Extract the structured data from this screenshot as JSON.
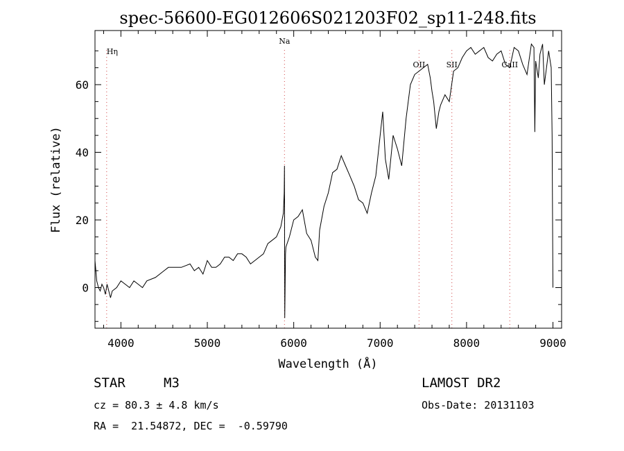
{
  "chart_data": {
    "type": "line",
    "title": "spec-56600-EG012606S021203F02_sp11-248.fits",
    "xlabel": "Wavelength (Å)",
    "ylabel": "Flux (relative)",
    "xlim": [
      3700,
      9100
    ],
    "ylim": [
      -12,
      76
    ],
    "x_ticks": [
      4000,
      5000,
      6000,
      7000,
      8000,
      9000
    ],
    "x_tick_labels": [
      "4000",
      "5000",
      "6000",
      "7000",
      "8000",
      "9000"
    ],
    "y_ticks": [
      0,
      20,
      40,
      60
    ],
    "y_tick_labels": [
      "0",
      "20",
      "40",
      "60"
    ],
    "grid": false,
    "lines": [
      {
        "label": "Hη",
        "x": 3835
      },
      {
        "label": "Na",
        "x": 5893
      },
      {
        "label": "OII",
        "x": 7450
      },
      {
        "label": "SII",
        "x": 7830
      },
      {
        "label": "CaII",
        "x": 8500
      }
    ],
    "series": [
      {
        "x": [
          3700,
          3720,
          3740,
          3760,
          3780,
          3800,
          3820,
          3840,
          3860,
          3880,
          3900,
          3950,
          4000,
          4050,
          4100,
          4150,
          4200,
          4250,
          4300,
          4400,
          4500,
          4550,
          4600,
          4700,
          4800,
          4850,
          4900,
          4950,
          5000,
          5050,
          5100,
          5150,
          5200,
          5250,
          5300,
          5350,
          5400,
          5450,
          5500,
          5550,
          5600,
          5650,
          5700,
          5750,
          5800,
          5850,
          5880,
          5890,
          5893,
          5896,
          5900,
          5905,
          5910,
          5950,
          6000,
          6050,
          6100,
          6150,
          6200,
          6250,
          6280,
          6300,
          6350,
          6400,
          6450,
          6500,
          6550,
          6600,
          6650,
          6700,
          6750,
          6800,
          6850,
          6900,
          6950,
          7000,
          7030,
          7060,
          7100,
          7150,
          7200,
          7250,
          7300,
          7350,
          7400,
          7450,
          7500,
          7550,
          7580,
          7600,
          7620,
          7650,
          7680,
          7700,
          7750,
          7800,
          7850,
          7900,
          7950,
          8000,
          8050,
          8100,
          8150,
          8200,
          8250,
          8300,
          8350,
          8400,
          8450,
          8500,
          8550,
          8600,
          8650,
          8700,
          8750,
          8780,
          8790,
          8800,
          8830,
          8850,
          8880,
          8900,
          8950,
          8980,
          8990,
          9000
        ],
        "y": [
          8,
          2,
          0,
          -1,
          1,
          0,
          -2,
          1,
          -1,
          -3,
          -1,
          0,
          2,
          1,
          0,
          2,
          1,
          0,
          2,
          3,
          5,
          6,
          6,
          6,
          7,
          5,
          6,
          4,
          8,
          6,
          6,
          7,
          9,
          9,
          8,
          10,
          10,
          9,
          7,
          8,
          9,
          10,
          13,
          14,
          15,
          18,
          22,
          28,
          36,
          -9,
          0,
          10,
          12,
          15,
          20,
          21,
          23,
          16,
          14,
          9,
          8,
          17,
          24,
          28,
          34,
          35,
          39,
          36,
          33,
          30,
          26,
          25,
          22,
          28,
          33,
          45,
          52,
          38,
          32,
          45,
          41,
          36,
          50,
          60,
          63,
          64,
          65,
          66,
          62,
          58,
          55,
          47,
          52,
          54,
          57,
          55,
          64,
          65,
          68,
          70,
          71,
          69,
          70,
          71,
          68,
          67,
          69,
          70,
          66,
          65,
          71,
          70,
          66,
          63,
          72,
          71,
          46,
          67,
          62,
          69,
          72,
          60,
          70,
          65,
          45,
          0
        ]
      }
    ]
  },
  "info": {
    "object_class": "STAR",
    "subclass": "M3",
    "survey": "LAMOST DR2",
    "redshift": "cz = 80.3 ± 4.8 km/s",
    "obs_date": "Obs-Date: 20131103",
    "coords": "RA =  21.54872, DEC =  -0.59790"
  }
}
